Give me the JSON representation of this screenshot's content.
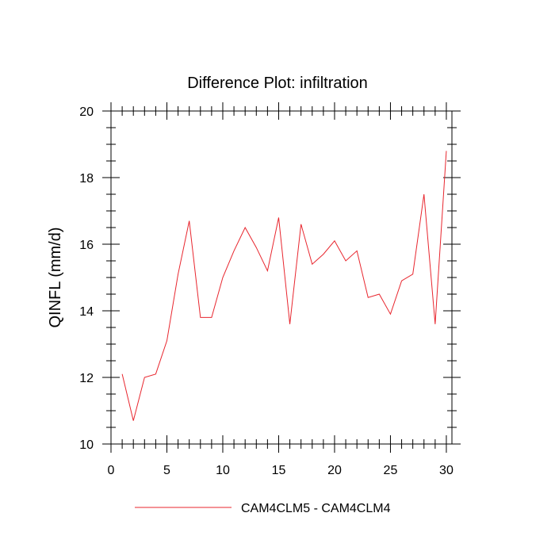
{
  "chart_data": {
    "type": "line",
    "title": "Difference Plot: infiltration",
    "ylabel": "QINFL  (mm/d)",
    "xlabel": "",
    "xlim": [
      0,
      30.5
    ],
    "ylim": [
      10,
      20
    ],
    "x_ticks": [
      0,
      5,
      10,
      15,
      20,
      25,
      30
    ],
    "y_ticks": [
      10,
      12,
      14,
      16,
      18,
      20
    ],
    "grid": false,
    "legend_position": "bottom-center",
    "series": [
      {
        "name": "CAM4CLM5 - CAM4CLM4",
        "color": "#e8262e",
        "x": [
          1,
          2,
          3,
          4,
          5,
          6,
          7,
          8,
          9,
          10,
          11,
          12,
          13,
          14,
          15,
          16,
          17,
          18,
          19,
          20,
          21,
          22,
          23,
          24,
          25,
          26,
          27,
          28,
          29,
          30
        ],
        "y": [
          12.1,
          10.7,
          12.0,
          12.1,
          13.1,
          15.1,
          16.7,
          13.8,
          13.8,
          15.0,
          15.8,
          16.5,
          15.9,
          15.2,
          16.8,
          13.6,
          16.6,
          15.4,
          15.7,
          16.1,
          15.5,
          15.8,
          14.4,
          14.5,
          13.9,
          14.9,
          15.1,
          17.5,
          13.6,
          18.8
        ]
      }
    ]
  }
}
